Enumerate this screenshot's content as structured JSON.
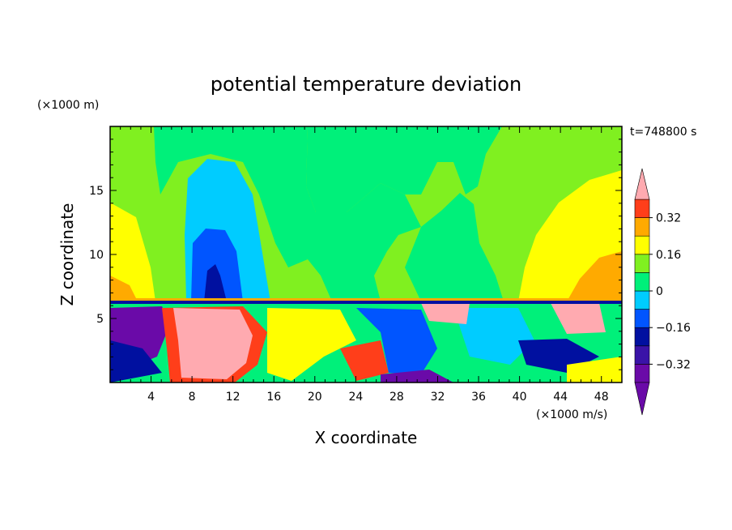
{
  "chart_data": {
    "type": "heatmap",
    "title": "potential temperature deviation",
    "time_label": "t=748800 s",
    "xlabel": "X coordinate",
    "ylabel": "Z coordinate",
    "x_unit": "(×1000 m/s)",
    "y_unit": "(×1000 m)",
    "xlim": [
      0,
      50
    ],
    "ylim": [
      0,
      20
    ],
    "x_ticks": [
      4,
      8,
      12,
      16,
      20,
      24,
      28,
      32,
      36,
      40,
      44,
      48
    ],
    "x_tick_labels": [
      "4",
      "8",
      "12",
      "16",
      "20",
      "24",
      "28",
      "32",
      "36",
      "40",
      "44",
      "48"
    ],
    "y_ticks": [
      5,
      10,
      15
    ],
    "y_tick_labels": [
      "5",
      "10",
      "15"
    ],
    "colorbar": {
      "levels": [
        -0.4,
        -0.32,
        -0.24,
        -0.16,
        -0.08,
        0,
        0.08,
        0.16,
        0.24,
        0.32,
        0.4
      ],
      "tick_values": [
        0.32,
        0.16,
        0,
        -0.16,
        -0.32
      ],
      "tick_labels": [
        "0.32",
        "0.16",
        "0",
        "−0.16",
        "−0.32"
      ],
      "colors": [
        "#6a0aa8",
        "#3a13a8",
        "#0010a0",
        "#0055ff",
        "#00ccff",
        "#00f07a",
        "#80f020",
        "#ffff00",
        "#ffaa00",
        "#ff3e1a",
        "#ffaab0"
      ],
      "extend": "both"
    }
  }
}
